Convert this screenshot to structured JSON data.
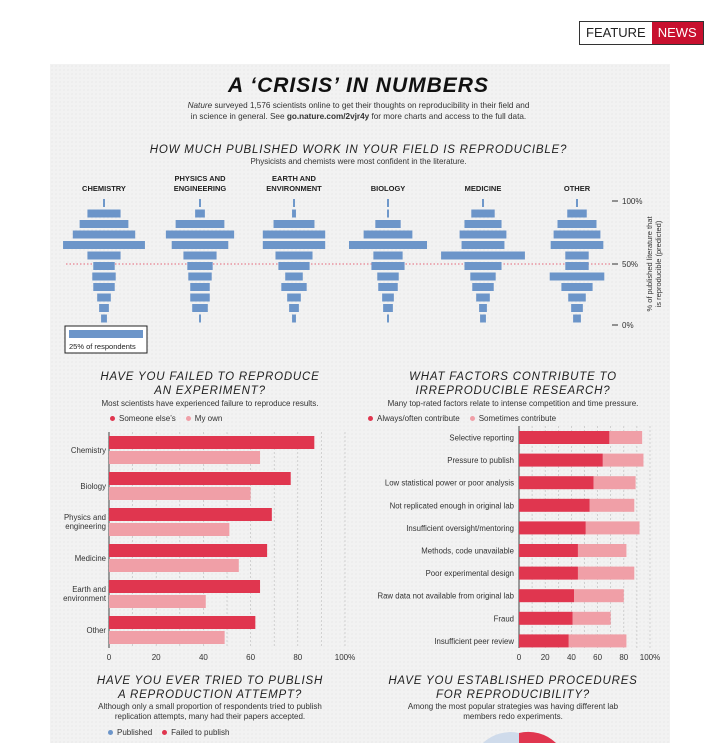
{
  "header": {
    "feature": "FEATURE",
    "news": "NEWS"
  },
  "title": "A ‘CRISIS’ IN NUMBERS",
  "intro": {
    "italic_word": "Nature",
    "line1_rest": " surveyed 1,576 scientists online to get their thoughts on reproducibility in their field and",
    "line2_a": "in science in general. See ",
    "link": "go.nature.com/2vjr4y",
    "line2_b": " for more charts and access to the full data."
  },
  "colors": {
    "dark_red": "#e0364f",
    "light_red": "#f09fa7",
    "blue": "#6c95c9",
    "red_brand": "#c8102e"
  },
  "chart_data": [
    {
      "type": "bar",
      "title": "HOW MUCH PUBLISHED WORK IN YOUR FIELD IS REPRODUCIBLE?",
      "subtitle": "Physicists and chemists were most confident in the literature.",
      "ylabel": "% of published literature that is reproducible (predicted)",
      "y_ticks": [
        "100%",
        "50%",
        "0%"
      ],
      "legend": "25% of respondents",
      "reference_line": 50,
      "fields": [
        {
          "name": "CHEMISTRY",
          "widths": [
            1,
            17,
            25,
            32,
            42,
            17,
            11,
            12,
            11,
            7,
            5,
            3
          ]
        },
        {
          "name": "PHYSICS AND ENGINEERING",
          "widths": [
            1,
            5,
            25,
            35,
            29,
            17,
            13,
            12,
            10,
            10,
            8,
            1
          ]
        },
        {
          "name": "EARTH AND ENVIRONMENT",
          "widths": [
            1,
            2,
            21,
            32,
            32,
            19,
            16,
            9,
            13,
            7,
            5,
            2
          ]
        },
        {
          "name": "BIOLOGY",
          "widths": [
            1,
            1,
            13,
            25,
            40,
            15,
            17,
            11,
            10,
            6,
            5,
            1
          ]
        },
        {
          "name": "MEDICINE",
          "widths": [
            1,
            12,
            19,
            24,
            22,
            43,
            19,
            13,
            11,
            7,
            4,
            3
          ]
        },
        {
          "name": "OTHER",
          "widths": [
            1,
            10,
            20,
            24,
            27,
            12,
            12,
            28,
            16,
            9,
            6,
            4
          ]
        }
      ]
    },
    {
      "type": "bar",
      "title_line1": "HAVE YOU FAILED TO REPRODUCE",
      "title_line2": "AN EXPERIMENT?",
      "subtitle": "Most scientists have experienced failure to reproduce results.",
      "series": [
        {
          "name": "Someone else’s",
          "values": [
            87,
            77,
            69,
            67,
            64,
            62
          ]
        },
        {
          "name": "My own",
          "values": [
            64,
            60,
            51,
            55,
            41,
            49
          ]
        }
      ],
      "categories": [
        "Chemistry",
        "Biology",
        "Physics and engineering",
        "Medicine",
        "Earth and environment",
        "Other"
      ],
      "x_ticks": [
        "0",
        "20",
        "40",
        "60",
        "80",
        "100%"
      ],
      "xlim": [
        0,
        100
      ]
    },
    {
      "type": "bar",
      "title_line1": "WHAT FACTORS CONTRIBUTE TO",
      "title_line2": "IRREPRODUCIBLE RESEARCH?",
      "subtitle": "Many top-rated factors relate to intense competition and time pressure.",
      "series": [
        {
          "name": "Always/often contribute",
          "values": [
            69,
            64,
            57,
            54,
            51,
            45,
            45,
            42,
            41,
            38
          ]
        },
        {
          "name": "Sometimes contribute",
          "values": [
            25,
            31,
            32,
            34,
            41,
            37,
            43,
            38,
            29,
            44
          ]
        }
      ],
      "categories": [
        "Selective reporting",
        "Pressure to publish",
        "Low statistical power or poor analysis",
        "Not replicated enough in original lab",
        "Insufficient oversight/mentoring",
        "Methods, code unavailable",
        "Poor experimental design",
        "Raw data not available from original lab",
        "Fraud",
        "Insufficient peer review"
      ],
      "x_ticks": [
        "0",
        "20",
        "40",
        "60",
        "80",
        "100%"
      ],
      "xlim": [
        0,
        100
      ],
      "stacked": true
    }
  ],
  "section4": {
    "title_line1": "HAVE YOU EVER TRIED TO PUBLISH",
    "title_line2": "A REPRODUCTION ATTEMPT?",
    "sub_line1": "Although only a small proportion of respondents tried to publish",
    "sub_line2": "replication attempts, many had their papers accepted.",
    "legend": [
      "Published",
      "Failed to publish"
    ]
  },
  "section5": {
    "title_line1": "HAVE YOU ESTABLISHED PROCEDURES",
    "title_line2": "FOR REPRODUCIBILITY?",
    "sub_line1": "Among the most popular strategies was having different lab",
    "sub_line2": "members redo experiments."
  }
}
